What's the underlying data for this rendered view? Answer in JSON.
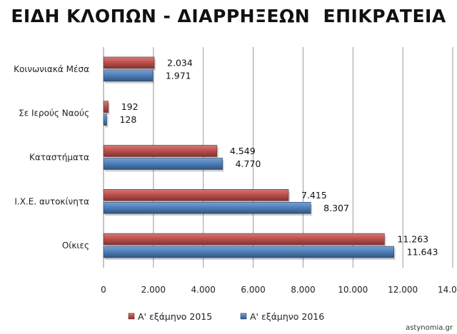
{
  "chart_data": {
    "type": "bar",
    "orientation": "horizontal",
    "title": "ΕΙΔΗ ΚΛΟΠΩΝ - ΔΙΑΡΡΗΞΕΩΝ  ΕΠΙΚΡΑΤΕΙΑ",
    "categories": [
      "Κοινωνιακά Μέσα",
      "Σε Ιερούς Ναούς",
      "Καταστήματα",
      "Ι.Χ.Ε. αυτοκίνητα",
      "Οίκιες"
    ],
    "series": [
      {
        "name": "Α' εξάμηνο 2015",
        "color": "#c0504d",
        "values": [
          2034,
          192,
          4549,
          7415,
          11263
        ],
        "labels": [
          "2.034",
          "192",
          "4.549",
          "7.415",
          "11.263"
        ]
      },
      {
        "name": "Α' εξάμηνο 2016",
        "color": "#4f81bd",
        "values": [
          1971,
          128,
          4770,
          8307,
          11643
        ],
        "labels": [
          "1.971",
          "128",
          "4.770",
          "8.307",
          "11.643"
        ]
      }
    ],
    "xlim": [
      0,
      14000
    ],
    "xticks": [
      0,
      2000,
      4000,
      6000,
      8000,
      10000,
      12000,
      14000
    ],
    "xtick_labels": [
      "0",
      "2.000",
      "4.000",
      "6.000",
      "8.000",
      "10.000",
      "12.000",
      "14.000"
    ],
    "grid": true,
    "legend_position": "bottom"
  },
  "source": "astynomia.gr"
}
